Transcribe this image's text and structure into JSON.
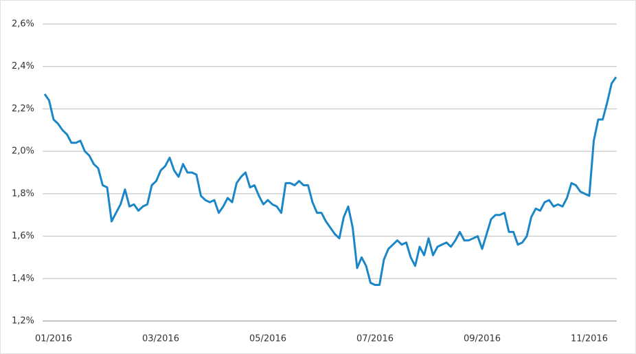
{
  "chart_data": {
    "type": "line",
    "categories": [
      null,
      null,
      "01/2016",
      null,
      null,
      null,
      null,
      null,
      null,
      null,
      null,
      null,
      null,
      null,
      null,
      null,
      null,
      null,
      null,
      null,
      null,
      null,
      null,
      null,
      null,
      null,
      "03/2016",
      null,
      null,
      null,
      null,
      null,
      null,
      null,
      null,
      null,
      null,
      null,
      null,
      null,
      null,
      null,
      null,
      null,
      null,
      null,
      null,
      null,
      null,
      null,
      "05/2016",
      null,
      null,
      null,
      null,
      null,
      null,
      null,
      null,
      null,
      null,
      null,
      null,
      null,
      null,
      null,
      null,
      null,
      null,
      null,
      null,
      null,
      null,
      null,
      "07/2016",
      null,
      null,
      null,
      null,
      null,
      null,
      null,
      null,
      null,
      null,
      null,
      null,
      null,
      null,
      null,
      null,
      null,
      null,
      null,
      null,
      null,
      null,
      null,
      "09/2016",
      null,
      null,
      null,
      null,
      null,
      null,
      null,
      null,
      null,
      null,
      null,
      null,
      null,
      null,
      null,
      null,
      null,
      null,
      null,
      null,
      null,
      null,
      null,
      "11/2016",
      null,
      null,
      null,
      null,
      null,
      null
    ],
    "series": [
      {
        "color": "#1a86c8",
        "values": [
          2.27,
          2.24,
          2.15,
          2.13,
          2.1,
          2.08,
          2.04,
          2.04,
          2.05,
          2.0,
          1.98,
          1.94,
          1.92,
          1.84,
          1.83,
          1.67,
          1.71,
          1.75,
          1.82,
          1.74,
          1.75,
          1.72,
          1.74,
          1.75,
          1.84,
          1.86,
          1.91,
          1.93,
          1.97,
          1.91,
          1.88,
          1.94,
          1.9,
          1.9,
          1.89,
          1.79,
          1.77,
          1.76,
          1.77,
          1.71,
          1.74,
          1.78,
          1.76,
          1.85,
          1.88,
          1.9,
          1.83,
          1.84,
          1.79,
          1.75,
          1.77,
          1.75,
          1.74,
          1.71,
          1.85,
          1.85,
          1.84,
          1.86,
          1.84,
          1.84,
          1.76,
          1.71,
          1.71,
          1.67,
          1.64,
          1.61,
          1.59,
          1.69,
          1.74,
          1.64,
          1.45,
          1.5,
          1.46,
          1.38,
          1.37,
          1.37,
          1.49,
          1.54,
          1.56,
          1.58,
          1.56,
          1.57,
          1.5,
          1.46,
          1.55,
          1.51,
          1.59,
          1.51,
          1.55,
          1.56,
          1.57,
          1.55,
          1.58,
          1.62,
          1.58,
          1.58,
          1.59,
          1.6,
          1.54,
          1.61,
          1.68,
          1.7,
          1.7,
          1.71,
          1.62,
          1.62,
          1.56,
          1.57,
          1.6,
          1.69,
          1.73,
          1.72,
          1.76,
          1.77,
          1.74,
          1.75,
          1.74,
          1.78,
          1.85,
          1.84,
          1.81,
          1.8,
          1.79,
          2.05,
          2.15,
          2.15,
          2.23,
          2.32,
          2.35
        ]
      }
    ],
    "ylim": [
      1.2,
      2.6
    ],
    "yticks": [
      {
        "value": 1.2,
        "label": "1,2%"
      },
      {
        "value": 1.4,
        "label": "1,4%"
      },
      {
        "value": 1.6,
        "label": "1,6%"
      },
      {
        "value": 1.8,
        "label": "1,8%"
      },
      {
        "value": 2.0,
        "label": "2,0%"
      },
      {
        "value": 2.2,
        "label": "2,2%"
      },
      {
        "value": 2.4,
        "label": "2,4%"
      },
      {
        "value": 2.6,
        "label": "2,6%"
      }
    ],
    "grid": true
  }
}
